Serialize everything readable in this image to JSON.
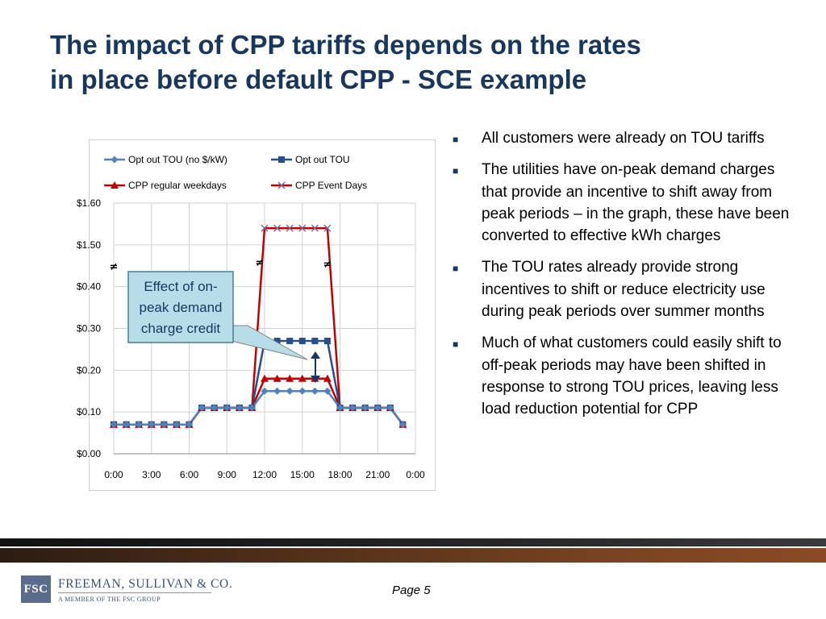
{
  "slide": {
    "title_line1": "The impact of CPP tariffs depends on the rates",
    "title_line2": "in place before default CPP - SCE example",
    "page_label": "Page 5",
    "colors": {
      "title": "#17375e",
      "band_dark": "#1a1a1a",
      "band_brown": "#6b3a1e"
    }
  },
  "bullets": [
    "All customers were already on TOU tariffs",
    "The utilities have on-peak demand charges that provide an incentive to shift away from peak periods – in the graph, these have been converted to effective kWh charges",
    "The TOU rates already provide strong incentives to shift or reduce electricity use during peak periods over summer months",
    "Much of what customers could easily shift to off-peak periods may have been shifted in response to strong TOU prices, leaving less load reduction potential for CPP"
  ],
  "bullet_marker": "■",
  "callout": {
    "lines": [
      "Effect of on-",
      "peak demand",
      "charge credit"
    ]
  },
  "axis_break_symbol": "≠",
  "logo": {
    "box_text": "FSC",
    "name": "FREEMAN, SULLIVAN & CO.",
    "sub": "A MEMBER OF THE FSC GROUP"
  },
  "chart_data": {
    "type": "line",
    "title": "",
    "xlabel": "",
    "ylabel": "",
    "x": [
      "0:00",
      "1:00",
      "2:00",
      "3:00",
      "4:00",
      "5:00",
      "6:00",
      "7:00",
      "8:00",
      "9:00",
      "10:00",
      "11:00",
      "12:00",
      "13:00",
      "14:00",
      "15:00",
      "16:00",
      "17:00",
      "18:00",
      "19:00",
      "20:00",
      "21:00",
      "22:00",
      "23:00"
    ],
    "x_ticks": [
      "0:00",
      "3:00",
      "6:00",
      "9:00",
      "12:00",
      "15:00",
      "18:00",
      "21:00",
      "0:00"
    ],
    "y_ticks": [
      "$0.00",
      "$0.10",
      "$0.20",
      "$0.30",
      "$0.40",
      "$1.50",
      "$1.60"
    ],
    "y_axis_break": "between $0.40 and $1.50",
    "grid": true,
    "legend_position": "top",
    "series": [
      {
        "name": "Opt out TOU (no $/kW)",
        "color": "#4f81bd",
        "marker": "diamond",
        "values": [
          0.07,
          0.07,
          0.07,
          0.07,
          0.07,
          0.07,
          0.07,
          0.11,
          0.11,
          0.11,
          0.11,
          0.11,
          0.15,
          0.15,
          0.15,
          0.15,
          0.15,
          0.15,
          0.11,
          0.11,
          0.11,
          0.11,
          0.11,
          0.07
        ]
      },
      {
        "name": "Opt out TOU",
        "color": "#254f8f",
        "marker": "square",
        "values": [
          0.07,
          0.07,
          0.07,
          0.07,
          0.07,
          0.07,
          0.07,
          0.11,
          0.11,
          0.11,
          0.11,
          0.11,
          0.27,
          0.27,
          0.27,
          0.27,
          0.27,
          0.27,
          0.11,
          0.11,
          0.11,
          0.11,
          0.11,
          0.07
        ]
      },
      {
        "name": "CPP regular weekdays",
        "color": "#c00000",
        "marker": "triangle",
        "values": [
          0.07,
          0.07,
          0.07,
          0.07,
          0.07,
          0.07,
          0.07,
          0.11,
          0.11,
          0.11,
          0.11,
          0.11,
          0.18,
          0.18,
          0.18,
          0.18,
          0.18,
          0.18,
          0.11,
          0.11,
          0.11,
          0.11,
          0.11,
          0.07
        ]
      },
      {
        "name": "CPP Event Days",
        "color": "#8064a2",
        "line_color": "#c00000",
        "marker": "x",
        "values": [
          0.07,
          0.07,
          0.07,
          0.07,
          0.07,
          0.07,
          0.07,
          0.11,
          0.11,
          0.11,
          0.11,
          0.11,
          1.54,
          1.54,
          1.54,
          1.54,
          1.54,
          1.54,
          0.11,
          0.11,
          0.11,
          0.11,
          0.11,
          0.07
        ]
      }
    ]
  }
}
